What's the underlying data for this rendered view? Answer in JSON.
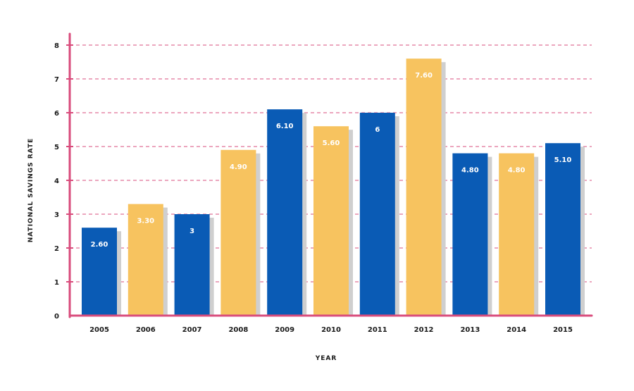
{
  "chart_data": {
    "type": "bar",
    "title": "",
    "xlabel": "YEAR",
    "ylabel": "NATIONAL SAVINGS RATE",
    "categories": [
      "2005",
      "2006",
      "2007",
      "2008",
      "2009",
      "2010",
      "2011",
      "2012",
      "2013",
      "2014",
      "2015"
    ],
    "values": [
      2.6,
      3.3,
      3,
      4.9,
      6.1,
      5.6,
      6,
      7.6,
      4.8,
      4.8,
      5.1
    ],
    "value_labels": [
      "2.60",
      "3.30",
      "3",
      "4.90",
      "6.10",
      "5.60",
      "6",
      "7.60",
      "4.80",
      "4.80",
      "5.10"
    ],
    "y_ticks": [
      0,
      1,
      2,
      3,
      4,
      5,
      6,
      7,
      8
    ],
    "ylim": [
      0,
      8
    ],
    "grid": true,
    "legend": "none",
    "colors": {
      "blue": "#0a5bb5",
      "yellow": "#f7c35f",
      "shadow": "#cfcfcf",
      "axis": "#d94c7c",
      "grid": "#d94c7c"
    }
  }
}
